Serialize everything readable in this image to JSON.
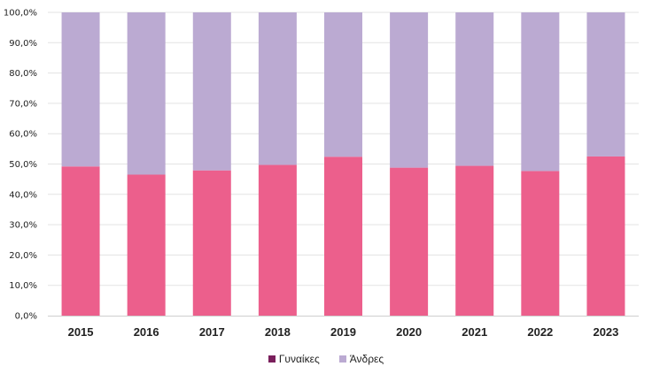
{
  "chart_data": {
    "type": "bar",
    "stacked": true,
    "categories": [
      "2015",
      "2016",
      "2017",
      "2018",
      "2019",
      "2020",
      "2021",
      "2022",
      "2023"
    ],
    "series": [
      {
        "name": "Γυναίκες",
        "values": [
          49.2,
          46.5,
          47.9,
          49.7,
          52.4,
          48.8,
          49.4,
          47.7,
          52.5
        ]
      },
      {
        "name": "Άνδρες",
        "values": [
          50.8,
          53.5,
          52.1,
          50.3,
          47.6,
          51.2,
          50.6,
          52.3,
          47.5
        ]
      }
    ],
    "colors": {
      "Γυναίκες": "#ec5f8c",
      "Άνδρες": "#bbaad2",
      "Γυναίκες_legend": "#7a1f5c"
    },
    "yticks": [
      "0,0%",
      "10,0%",
      "20,0%",
      "30,0%",
      "40,0%",
      "50,0%",
      "60,0%",
      "70,0%",
      "80,0%",
      "90,0%",
      "100,0%"
    ],
    "ylim": [
      0,
      100
    ],
    "grid": true,
    "legend_position": "bottom"
  }
}
